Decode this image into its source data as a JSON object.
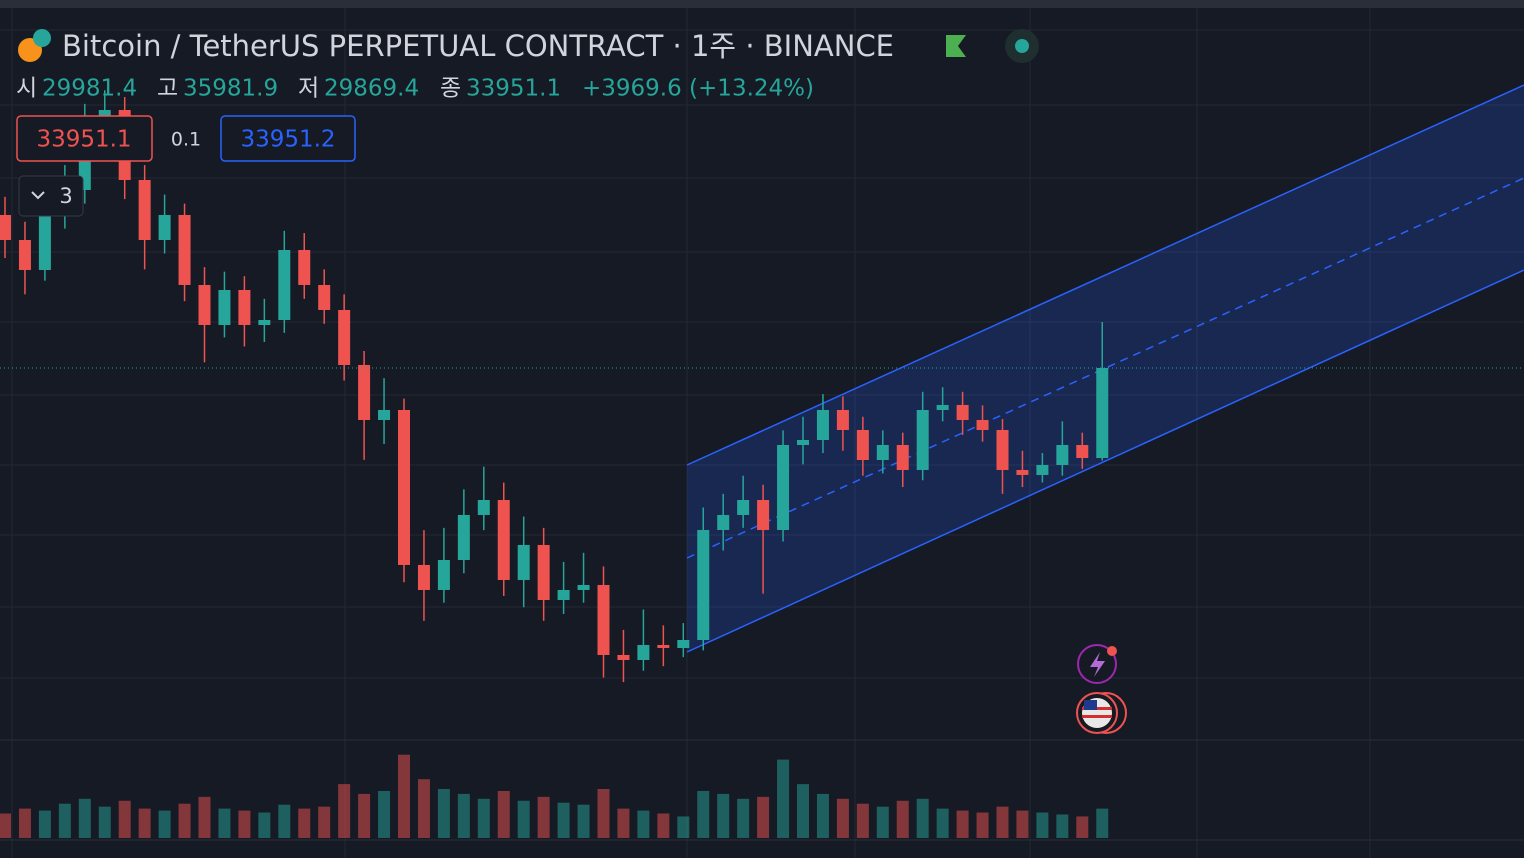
{
  "header": {
    "title": "Bitcoin / TetherUS PERPETUAL CONTRACT · 1주 · BINANCE",
    "open_label": "시",
    "high_label": "고",
    "low_label": "저",
    "close_label": "종",
    "change": "+3969.6 (+13.24%)"
  },
  "trade": {
    "ask": 33951.2,
    "spread": 0.1,
    "lots": "3"
  },
  "chart_data": {
    "type": "candlestick",
    "up_color": "#26a69a",
    "down_color": "#ef5350",
    "ylim": [
      17545,
      50180
    ],
    "volume_lim": [
      0,
      100
    ],
    "ohlc": [
      [
        40699,
        41500,
        38800,
        39596
      ],
      [
        39596,
        40400,
        37200,
        38273
      ],
      [
        38273,
        41600,
        37800,
        40699
      ],
      [
        40699,
        42900,
        40100,
        41801
      ],
      [
        41801,
        45600,
        41200,
        44447
      ],
      [
        44447,
        46200,
        43600,
        45329
      ],
      [
        45329,
        45900,
        41400,
        42242
      ],
      [
        42242,
        42900,
        38300,
        39596
      ],
      [
        39596,
        41600,
        39000,
        40699
      ],
      [
        40699,
        41200,
        36900,
        37612
      ],
      [
        37612,
        38400,
        34200,
        35848
      ],
      [
        35848,
        38200,
        35300,
        37391
      ],
      [
        37391,
        38000,
        34900,
        35848
      ],
      [
        35848,
        37000,
        35100,
        36068
      ],
      [
        36068,
        40000,
        35500,
        39155
      ],
      [
        39155,
        39900,
        37000,
        37612
      ],
      [
        37612,
        38300,
        35900,
        36509
      ],
      [
        36509,
        37200,
        33400,
        34084
      ],
      [
        34084,
        34700,
        29900,
        31658
      ],
      [
        31658,
        33500,
        30600,
        32099
      ],
      [
        32099,
        32600,
        24500,
        25264
      ],
      [
        25264,
        26800,
        22800,
        24161
      ],
      [
        24161,
        26900,
        23600,
        25484
      ],
      [
        25484,
        28600,
        24900,
        27469
      ],
      [
        27469,
        29600,
        26800,
        28130
      ],
      [
        28130,
        28900,
        23900,
        24602
      ],
      [
        24602,
        27400,
        23400,
        26146
      ],
      [
        26146,
        26900,
        22800,
        23720
      ],
      [
        23720,
        25400,
        23100,
        24161
      ],
      [
        24161,
        25800,
        23600,
        24382
      ],
      [
        24382,
        25200,
        20300,
        21294
      ],
      [
        21294,
        22400,
        20100,
        21074
      ],
      [
        21074,
        23300,
        20600,
        21736
      ],
      [
        21736,
        22600,
        20800,
        21603
      ],
      [
        21603,
        22700,
        21200,
        21956
      ],
      [
        21956,
        27800,
        21500,
        26807
      ],
      [
        26807,
        28400,
        25900,
        27469
      ],
      [
        27469,
        29200,
        26900,
        28130
      ],
      [
        28130,
        28800,
        24000,
        26807
      ],
      [
        26807,
        31200,
        26300,
        30555
      ],
      [
        30555,
        31800,
        29700,
        30776
      ],
      [
        30776,
        32800,
        30200,
        32099
      ],
      [
        32099,
        32700,
        30300,
        31217
      ],
      [
        31217,
        31800,
        29200,
        29894
      ],
      [
        29894,
        31200,
        29300,
        30555
      ],
      [
        30555,
        31100,
        28700,
        29453
      ],
      [
        29453,
        32900,
        29000,
        32099
      ],
      [
        32099,
        33100,
        31600,
        32320
      ],
      [
        32320,
        32900,
        31000,
        31658
      ],
      [
        31658,
        32300,
        30700,
        31217
      ],
      [
        31217,
        31700,
        28400,
        29453
      ],
      [
        29453,
        30300,
        28700,
        29233
      ],
      [
        29233,
        30200,
        28900,
        29674
      ],
      [
        29674,
        31600,
        29200,
        30555
      ],
      [
        30555,
        31100,
        29500,
        29981.4
      ],
      [
        29981.4,
        35981.9,
        29869.4,
        33951.1
      ]
    ],
    "volume": [
      25,
      30,
      28,
      35,
      40,
      32,
      38,
      30,
      28,
      35,
      42,
      30,
      28,
      26,
      34,
      30,
      32,
      55,
      45,
      48,
      85,
      60,
      50,
      45,
      40,
      48,
      38,
      42,
      36,
      34,
      50,
      30,
      28,
      25,
      22,
      48,
      45,
      40,
      42,
      80,
      55,
      45,
      40,
      35,
      32,
      38,
      40,
      30,
      28,
      26,
      32,
      28,
      26,
      24,
      22,
      30
    ]
  }
}
